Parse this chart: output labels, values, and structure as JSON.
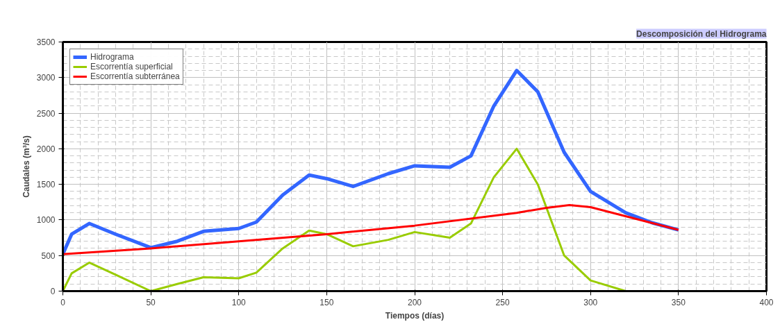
{
  "chart_data": {
    "type": "line",
    "title": "Descomposición del Hidrograma",
    "xlabel": "Tiempos (días)",
    "ylabel": "Caudales (m³/s)",
    "xlim": [
      0,
      400
    ],
    "xticks": [
      0,
      50,
      100,
      150,
      200,
      250,
      300,
      350,
      400
    ],
    "ylim": [
      0,
      3500
    ],
    "yticks": [
      0,
      500,
      1000,
      1500,
      2000,
      2500,
      3000,
      3500
    ],
    "grid": true,
    "legend": "top left",
    "marker": "none",
    "line_style": "solid",
    "series": [
      {
        "name": "Hidrograma",
        "color": "#3366ff",
        "x": [
          0,
          5,
          15,
          30,
          50,
          65,
          80,
          100,
          110,
          125,
          140,
          150,
          165,
          185,
          200,
          220,
          232,
          245,
          258,
          270,
          285,
          300,
          320,
          335,
          350
        ],
        "values": [
          520,
          800,
          950,
          800,
          610,
          700,
          840,
          880,
          970,
          1350,
          1630,
          1580,
          1470,
          1650,
          1760,
          1740,
          1900,
          2600,
          3100,
          2800,
          1950,
          1400,
          1100,
          960,
          860
        ]
      },
      {
        "name": "Escorrentía superficial",
        "color": "#99cc00",
        "x": [
          0,
          5,
          15,
          30,
          50,
          65,
          80,
          100,
          110,
          125,
          140,
          150,
          165,
          185,
          200,
          220,
          232,
          245,
          258,
          270,
          285,
          300,
          320,
          350
        ],
        "values": [
          0,
          250,
          400,
          230,
          0,
          100,
          195,
          180,
          260,
          600,
          850,
          800,
          630,
          720,
          830,
          750,
          950,
          1600,
          2000,
          1500,
          500,
          150,
          0,
          0
        ]
      },
      {
        "name": "Escorrentía subterránea",
        "color": "#ff0000",
        "x": [
          0,
          50,
          100,
          150,
          200,
          258,
          275,
          288,
          300,
          350
        ],
        "values": [
          520,
          600,
          700,
          800,
          920,
          1100,
          1170,
          1210,
          1180,
          860
        ]
      }
    ]
  }
}
